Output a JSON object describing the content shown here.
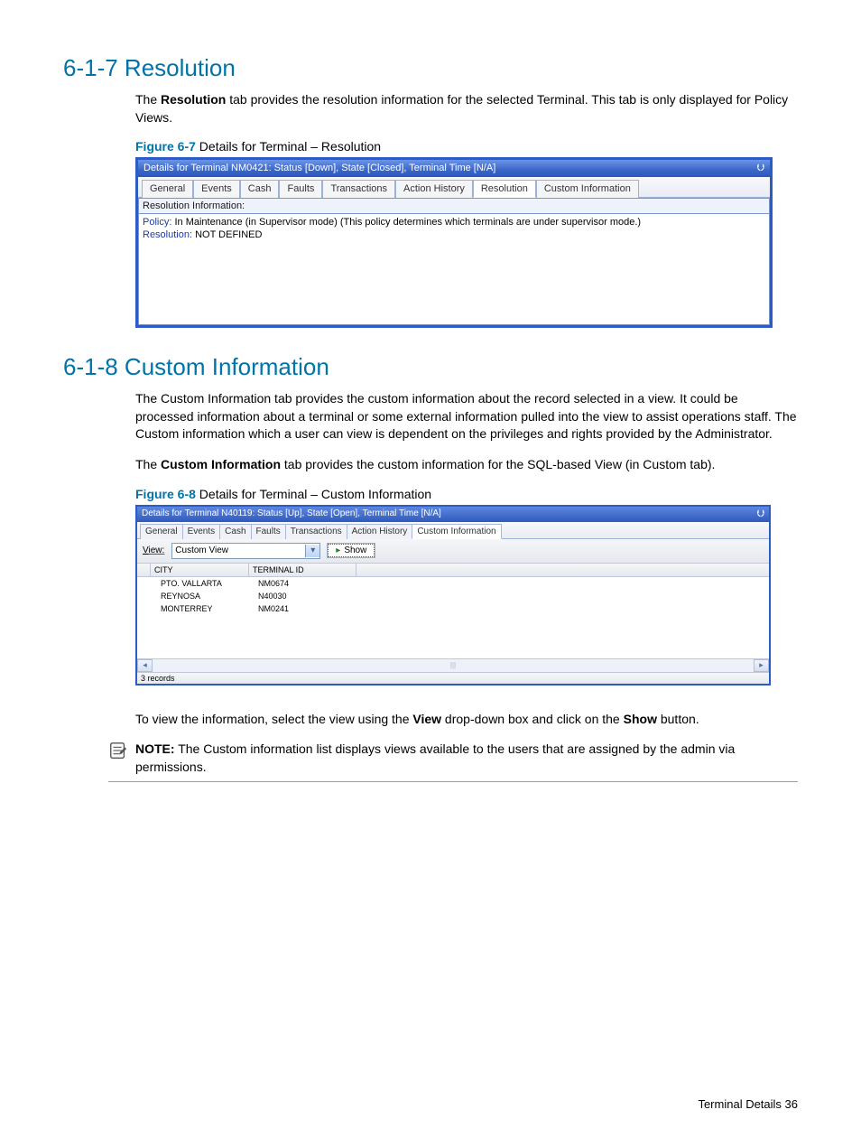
{
  "colors": {
    "heading": "#0073a8",
    "panel_border": "#2b5bc3",
    "titlebar_grad_top": "#6d94e3",
    "titlebar_grad_bot": "#2a57be",
    "tab_border": "#9cb0d9",
    "link_blue": "#1f3c9f",
    "note_rule": "#8aa4c8"
  },
  "section1": {
    "heading": "6-1-7 Resolution",
    "para1a": "The ",
    "para1b": "Resolution",
    "para1c": " tab provides the resolution information for the selected Terminal.  This tab is only displayed for Policy Views.",
    "fig_label": "Figure 6-7",
    "fig_caption": " Details for Terminal – Resolution",
    "panel": {
      "title": "Details for Terminal NM0421: Status [Down], State [Closed], Terminal Time [N/A]",
      "pin": "📌",
      "tabs": [
        "General",
        "Events",
        "Cash",
        "Faults",
        "Transactions",
        "Action History",
        "Resolution",
        "Custom Information"
      ],
      "active_tab_index": 6,
      "subheader": "Resolution Information:",
      "policy_label": "Policy:",
      "policy_value": " In Maintenance (in Supervisor mode) (This policy determines which terminals are under supervisor mode.)",
      "resolution_label": "Resolution:",
      "resolution_value": " NOT DEFINED"
    }
  },
  "section2": {
    "heading": "6-1-8 Custom Information",
    "para1": "The Custom Information tab provides the custom information about the record selected in a view.  It could be processed information about a terminal or some external information pulled into the view to assist operations staff.  The Custom information which a user can view is dependent on the privileges and rights provided by the Administrator.",
    "para2a": "The ",
    "para2b": "Custom Information",
    "para2c": " tab provides the custom information for the SQL-based View (in Custom tab).",
    "fig_label": "Figure 6-8",
    "fig_caption": " Details for Terminal – Custom Information",
    "panel": {
      "title": "Details for Terminal N40119: Status [Up], State [Open], Terminal Time [N/A]",
      "pin": "📌",
      "tabs": [
        "General",
        "Events",
        "Cash",
        "Faults",
        "Transactions",
        "Action History",
        "Custom Information"
      ],
      "active_tab_index": 6,
      "view_label": "View:",
      "view_value": "Custom View",
      "show_label": "Show",
      "columns": [
        "CITY",
        "TERMINAL ID"
      ],
      "rows": [
        [
          "PTO. VALLARTA",
          "NM0674"
        ],
        [
          "REYNOSA",
          "N40030"
        ],
        [
          "MONTERREY",
          "NM0241"
        ]
      ],
      "status": "3 records"
    },
    "para3a": "To view the information, select the view using the ",
    "para3b": "View",
    "para3c": " drop-down box and click on the ",
    "para3d": "Show",
    "para3e": " button.",
    "note_label": "NOTE:",
    "note_text": "  The Custom information list displays views available to the users that are assigned by the admin via permissions."
  },
  "footer": {
    "text": "Terminal Details   36"
  }
}
